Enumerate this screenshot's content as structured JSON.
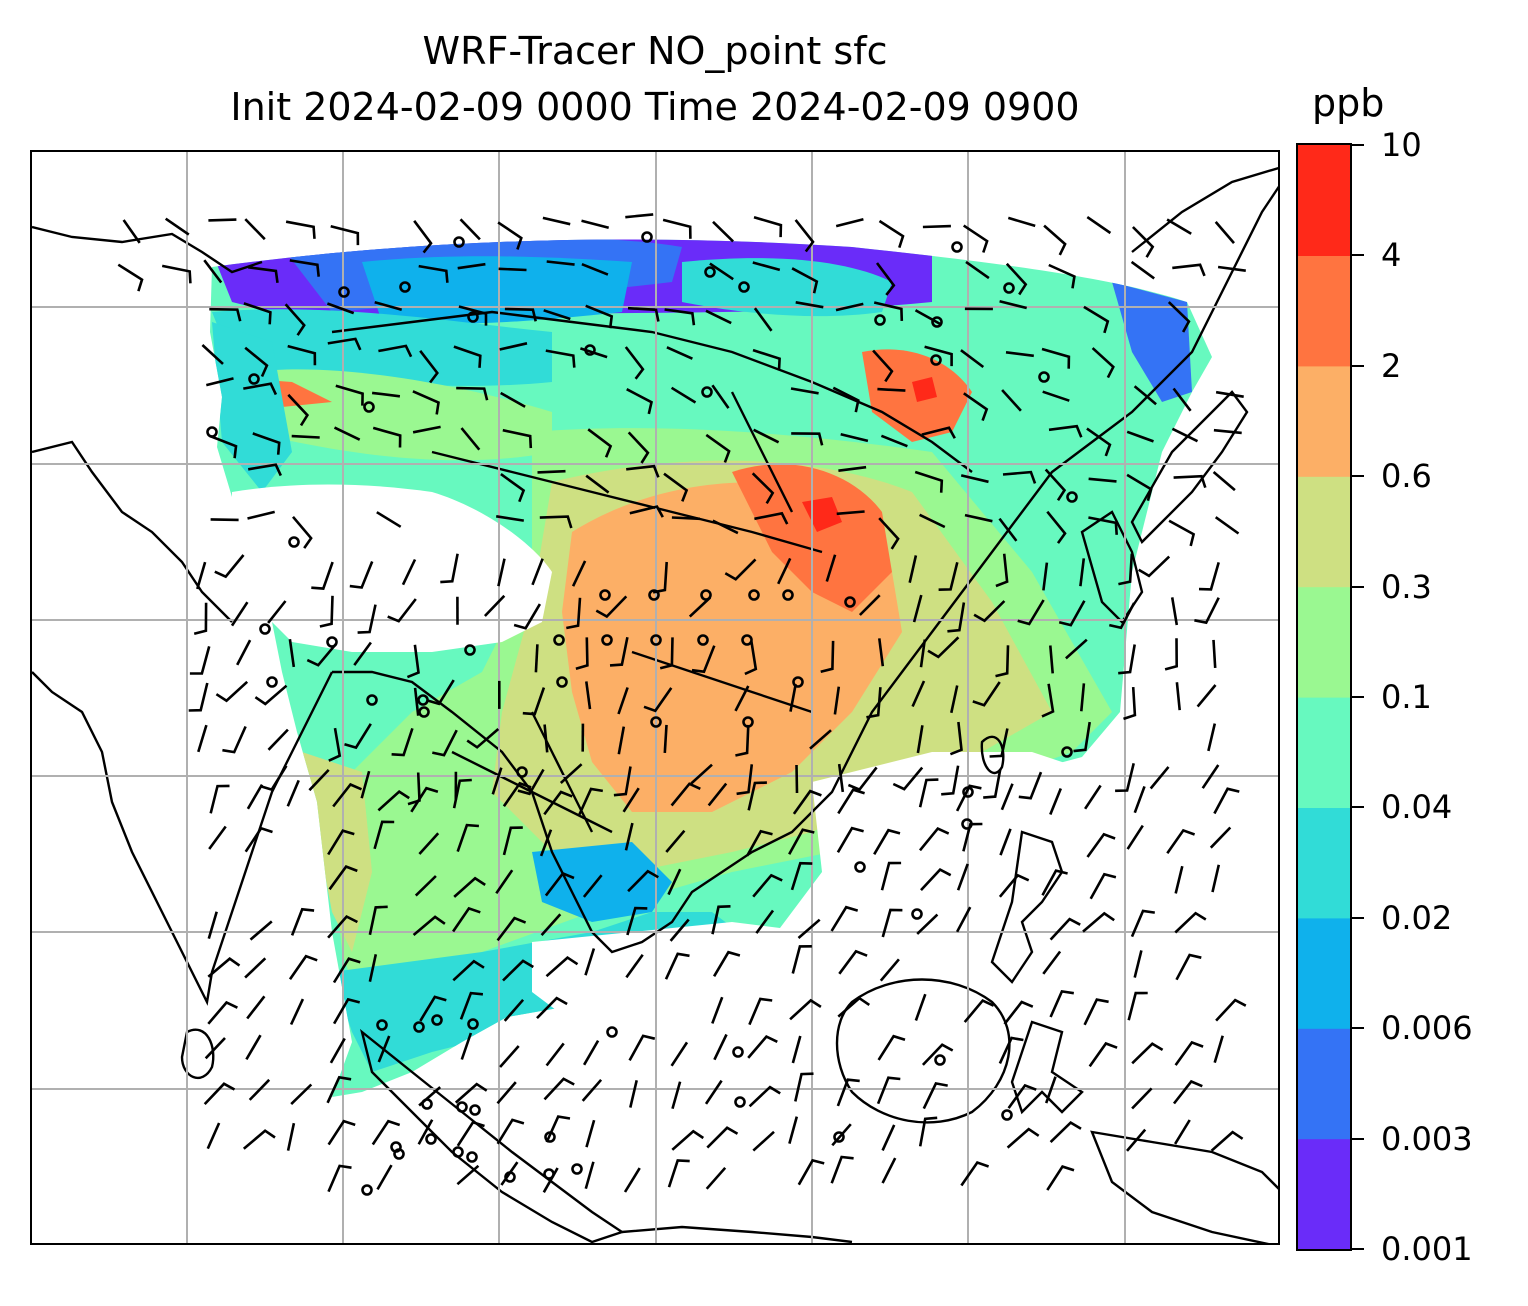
{
  "title": {
    "line1": "WRF-Tracer NO_point sfc",
    "line2": "Init 2024-02-09 0000 Time 2024-02-09 0900"
  },
  "colorbar": {
    "unit": "ppb",
    "levels": [
      "0.001",
      "0.003",
      "0.006",
      "0.02",
      "0.04",
      "0.1",
      "0.3",
      "0.6",
      "2",
      "4",
      "10"
    ],
    "colors": [
      "#6a2cf9",
      "#3473f5",
      "#0fb1ec",
      "#31dcd7",
      "#67f9bf",
      "#9af891",
      "#cee082",
      "#fcaf66",
      "#ff7440",
      "#ff2919"
    ]
  },
  "map": {
    "gridline_color": "#b0b0b0",
    "coastline_color": "#000000",
    "barb_color": "#000000",
    "gridlines": true
  }
}
